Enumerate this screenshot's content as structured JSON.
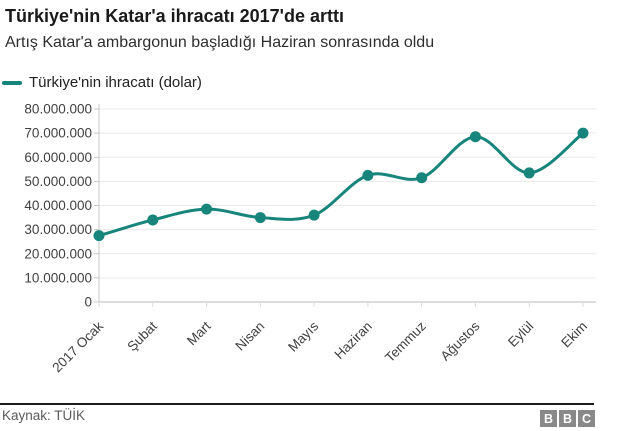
{
  "header": {
    "title": "Türkiye'nin Katar'a ihracatı 2017'de arttı",
    "subtitle": "Artış Katar'a ambargonun başladığı Haziran sonrasında oldu"
  },
  "legend": {
    "label": "Türkiye'nin ihracatı (dolar)"
  },
  "chart_data": {
    "type": "line",
    "title": "Türkiye'nin Katar'a ihracatı 2017'de arttı",
    "subtitle": "Artış Katar'a ambargonun başladığı Haziran sonrasında oldu",
    "categories": [
      "2017 Ocak",
      "Şubat",
      "Mart",
      "Nisan",
      "Mayıs",
      "Haziran",
      "Temmuz",
      "Ağustos",
      "Eylül",
      "Ekim"
    ],
    "series": [
      {
        "name": "Türkiye'nin ihracatı (dolar)",
        "color": "#17857B",
        "values": [
          27500000,
          34000000,
          38500000,
          35000000,
          36000000,
          52500000,
          51500000,
          68500000,
          53500000,
          70000000
        ]
      }
    ],
    "xlabel": "",
    "ylabel": "",
    "ylim": [
      0,
      80000000
    ],
    "ytick_step": 10000000,
    "ytick_labels": [
      "0",
      "10.000.000",
      "20.000.000",
      "30.000.000",
      "40.000.000",
      "50.000.000",
      "60.000.000",
      "70.000.000",
      "80.000.000"
    ],
    "grid": true,
    "legend_position": "top-left",
    "curve": "smooth",
    "marker": "circle"
  },
  "footer": {
    "source": "Kaynak: TÜİK",
    "logo_blocks": [
      "B",
      "B",
      "C"
    ]
  },
  "colors": {
    "accent": "#17857B",
    "gridline": "#e9e9e9",
    "axis": "#c8c8c8",
    "x_tick": "#d9d9d9",
    "logo_bg": "#898989"
  }
}
